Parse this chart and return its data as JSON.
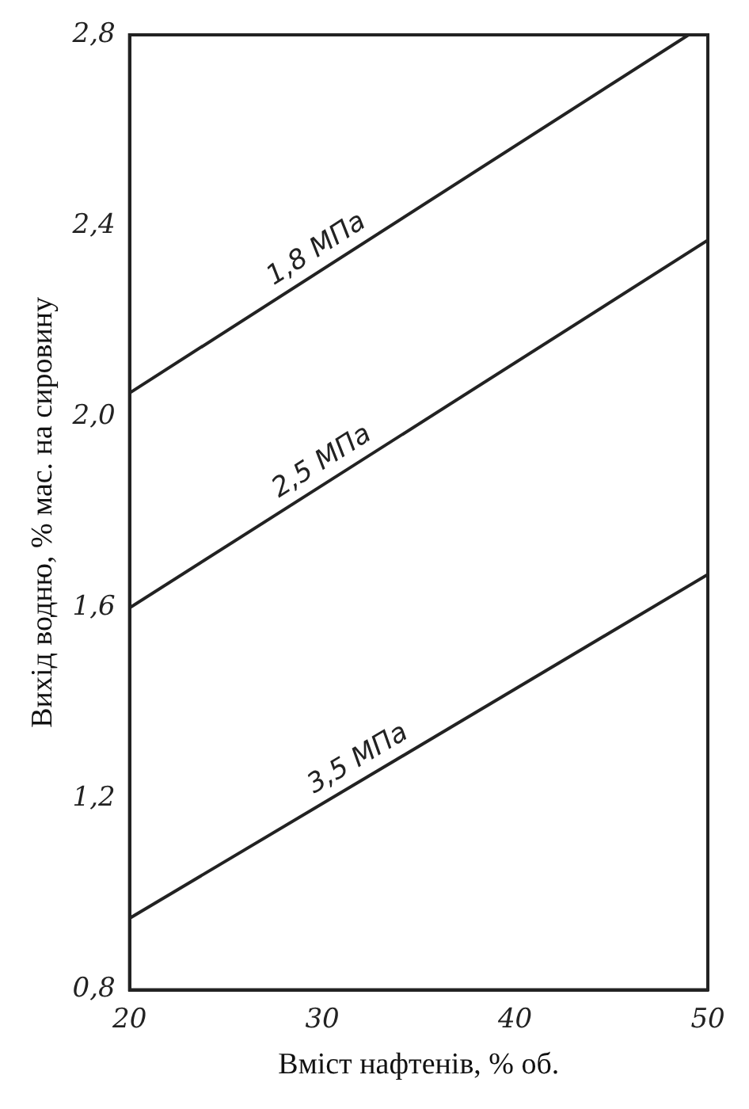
{
  "chart_data": {
    "type": "line",
    "xlabel": "Вміст нафтенів, % об.",
    "ylabel": "Вихід водню, % мас. на сировину",
    "xlim": [
      20,
      50
    ],
    "xticks": [
      20,
      30,
      40,
      50
    ],
    "ylim": [
      0.8,
      2.8
    ],
    "yticks": [
      {
        "value": 0.8,
        "label": "0,8"
      },
      {
        "value": 1.2,
        "label": "1,2"
      },
      {
        "value": 1.6,
        "label": "1,6"
      },
      {
        "value": 2.0,
        "label": "2,0"
      },
      {
        "value": 2.4,
        "label": "2,4"
      },
      {
        "value": 2.8,
        "label": "2,8"
      }
    ],
    "grid": false,
    "legend": false,
    "marker": "none",
    "line_style": "solid",
    "series": [
      {
        "color": "#222222",
        "x": [
          20,
          49
        ],
        "values": [
          2.05,
          2.8
        ]
      },
      {
        "color": "#222222",
        "x": [
          20,
          50
        ],
        "values": [
          1.6,
          2.37
        ]
      },
      {
        "color": "#222222",
        "x": [
          20,
          50
        ],
        "values": [
          0.95,
          1.67
        ]
      }
    ],
    "annotations": [
      "1,8 МПа",
      "2,5 МПа",
      "3,5 МПа"
    ]
  }
}
